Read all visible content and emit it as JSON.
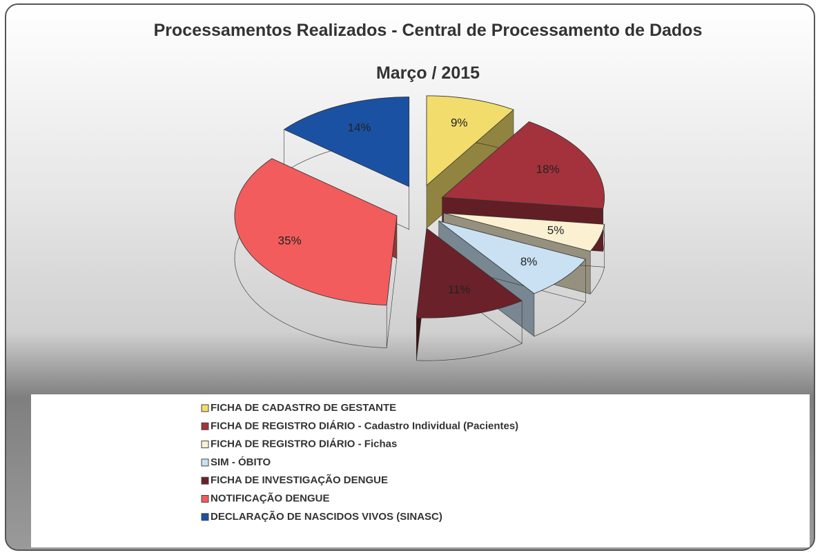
{
  "chart_data": {
    "type": "pie",
    "title": "Processamentos Realizados - Central de Processamento de Dados",
    "subtitle": "Março / 2015",
    "categories": [
      "FICHA DE CADASTRO DE GESTANTE",
      "FICHA DE REGISTRO DIÁRIO - Cadastro Individual (Pacientes)",
      "FICHA DE REGISTRO DIÁRIO - Fichas",
      "SIM - ÓBITO",
      "FICHA DE INVESTIGAÇÃO DENGUE",
      "NOTIFICAÇÃO DENGUE",
      "DECLARAÇÃO DE NASCIDOS VIVOS (SINASC)"
    ],
    "values": [
      9,
      18,
      5,
      8,
      11,
      35,
      14
    ],
    "value_labels": [
      "9%",
      "18%",
      "5%",
      "8%",
      "11%",
      "35%",
      "14%"
    ],
    "colors": [
      "#f2dc6c",
      "#a3323c",
      "#fbf1d2",
      "#c9e1f2",
      "#6b2129",
      "#f25c5c",
      "#1b51a3"
    ],
    "legend": "bottom"
  }
}
